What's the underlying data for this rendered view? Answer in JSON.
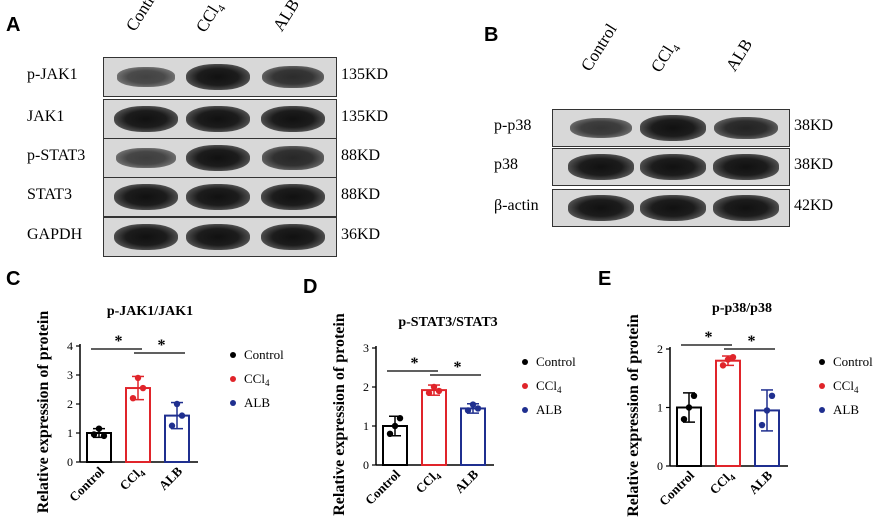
{
  "panels": {
    "A": "A",
    "B": "B",
    "C": "C",
    "D": "D",
    "E": "E"
  },
  "blot_a": {
    "lanes": [
      "Control",
      "CCl₄",
      "ALB"
    ],
    "rows": [
      {
        "label": "p-JAK1",
        "kd": "135KD",
        "intensity": [
          0.45,
          1.0,
          0.7
        ]
      },
      {
        "label": "JAK1",
        "kd": "135KD",
        "intensity": [
          1.0,
          1.0,
          1.0
        ]
      },
      {
        "label": "p-STAT3",
        "kd": "88KD",
        "intensity": [
          0.5,
          1.0,
          0.75
        ]
      },
      {
        "label": "STAT3",
        "kd": "88KD",
        "intensity": [
          1.0,
          1.0,
          1.0
        ]
      },
      {
        "label": "GAPDH",
        "kd": "36KD",
        "intensity": [
          1.0,
          1.0,
          1.0
        ]
      }
    ]
  },
  "blot_b": {
    "lanes": [
      "Control",
      "CCl₄",
      "ALB"
    ],
    "rows": [
      {
        "label": "p-p38",
        "kd": "38KD",
        "intensity": [
          0.6,
          1.0,
          0.8
        ]
      },
      {
        "label": "p38",
        "kd": "38KD",
        "intensity": [
          1.0,
          1.0,
          1.0
        ]
      },
      {
        "label": "β-actin",
        "kd": "42KD",
        "intensity": [
          1.0,
          1.0,
          1.0
        ]
      }
    ]
  },
  "chart_data": [
    {
      "type": "bar",
      "title": "p-JAK1/JAK1",
      "ylabel": "Relative expression of protein",
      "categories": [
        "Control",
        "CCl₄",
        "ALB"
      ],
      "values": [
        1.0,
        2.55,
        1.6
      ],
      "errors": [
        0.15,
        0.4,
        0.45
      ],
      "points": [
        [
          0.95,
          1.15,
          0.9
        ],
        [
          2.2,
          2.9,
          2.55
        ],
        [
          1.25,
          2.0,
          1.6
        ]
      ],
      "colors": [
        "#000000",
        "#e0242a",
        "#1f2f8f"
      ],
      "ylim": [
        0,
        4
      ],
      "yticks": [
        0,
        1,
        2,
        3,
        4
      ],
      "significance": [
        "*",
        "*"
      ],
      "legend": [
        "Control",
        "CCl₄",
        "ALB"
      ],
      "legend_position": "right"
    },
    {
      "type": "bar",
      "title": "p-STAT3/STAT3",
      "ylabel": "Relative expression of protein",
      "categories": [
        "Control",
        "CCl₄",
        "ALB"
      ],
      "values": [
        1.0,
        1.92,
        1.45
      ],
      "errors": [
        0.25,
        0.13,
        0.12
      ],
      "points": [
        [
          0.8,
          1.0,
          1.2
        ],
        [
          1.85,
          2.0,
          1.9
        ],
        [
          1.4,
          1.55,
          1.45
        ]
      ],
      "colors": [
        "#000000",
        "#e0242a",
        "#1f2f8f"
      ],
      "ylim": [
        0,
        3
      ],
      "yticks": [
        0,
        1,
        2,
        3
      ],
      "significance": [
        "*",
        "*"
      ],
      "legend": [
        "Control",
        "CCl₄",
        "ALB"
      ],
      "legend_position": "right"
    },
    {
      "type": "bar",
      "title": "p-p38/p38",
      "ylabel": "Relative expression of protein",
      "categories": [
        "Control",
        "CCl₄",
        "ALB"
      ],
      "values": [
        1.0,
        1.8,
        0.95
      ],
      "errors": [
        0.25,
        0.08,
        0.35
      ],
      "points": [
        [
          0.8,
          1.0,
          1.2
        ],
        [
          1.72,
          1.82,
          1.86
        ],
        [
          0.7,
          0.95,
          1.2
        ]
      ],
      "colors": [
        "#000000",
        "#e0242a",
        "#1f2f8f"
      ],
      "ylim": [
        0,
        2
      ],
      "yticks": [
        0,
        1,
        2
      ],
      "significance": [
        "*",
        "*"
      ],
      "legend": [
        "Control",
        "CCl₄",
        "ALB"
      ],
      "legend_position": "right"
    }
  ]
}
